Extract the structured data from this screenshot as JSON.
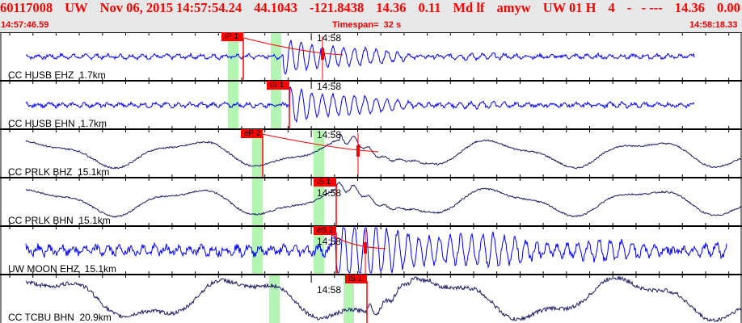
{
  "header": {
    "event_id": "60117008",
    "network": "UW",
    "origin": "Nov 06, 2015 14:57:54.24",
    "lat": "44.1043",
    "lon": "-121.8438",
    "depth": "14.36",
    "rms": "0.11",
    "magtype": "Md lf",
    "analyst": "amyw",
    "source": "UW 01 H",
    "nph": "4",
    "misc": "-   - ---",
    "depth2": "14.36",
    "err": "0.00",
    "start_time": "14:57:46.59",
    "timespan": "Timespan=  32 s",
    "end_time": "14:58:18.33"
  },
  "colors": {
    "header_text": "#ff0000",
    "pick": "#ff0000",
    "window": "#b4f5b4",
    "trace_blue": "#0000ff",
    "trace_navy": "#1a1a66"
  },
  "minute_label": "14:58",
  "channels": [
    {
      "label": "CC HUSB EHZ  1.7km",
      "pick": "iP 1",
      "color": "blue"
    },
    {
      "label": "CC HUSB EHN  1.7km",
      "pick": "iS 1",
      "color": "blue"
    },
    {
      "label": "CC PRLK BHZ  15.1km",
      "pick": "eP 2",
      "color": "navy"
    },
    {
      "label": "CC PRLK BHN  15.1km",
      "pick": "iS 1",
      "color": "navy"
    },
    {
      "label": "UW MOON EHZ  15.1km",
      "pick": "eS 2",
      "color": "blue"
    },
    {
      "label": "CC TCBU BHN  20.9km",
      "pick": "iS 1",
      "color": "navy"
    }
  ]
}
